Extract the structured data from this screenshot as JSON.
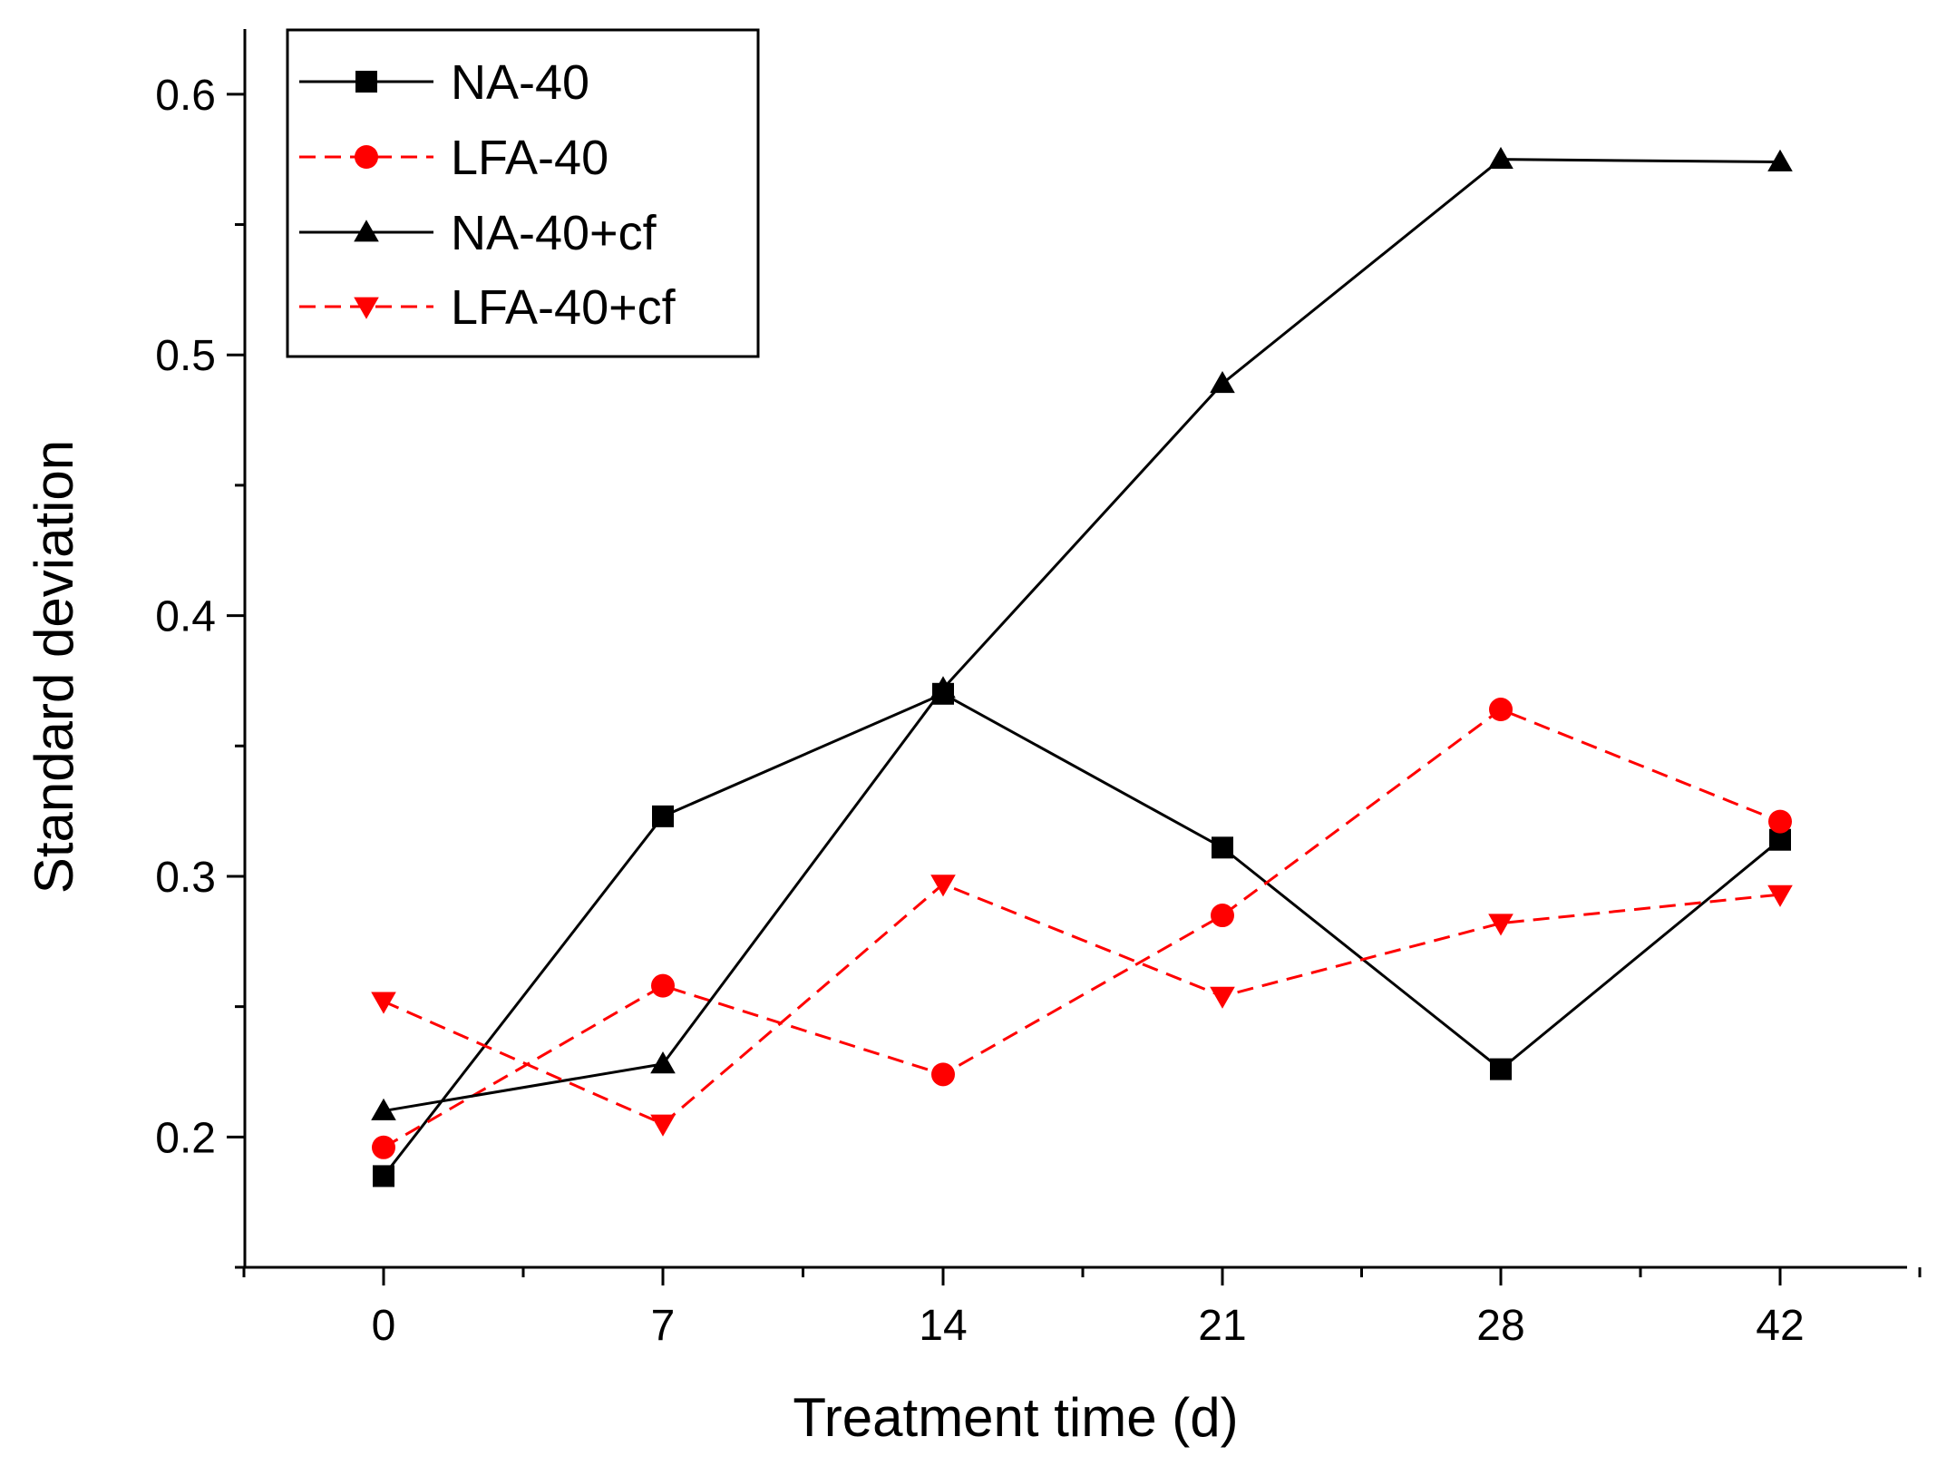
{
  "chart_data": {
    "type": "line",
    "title": "",
    "xlabel": "Treatment time (d)",
    "ylabel": "Standard deviation",
    "categories": [
      "0",
      "7",
      "14",
      "21",
      "28",
      "42"
    ],
    "ylim": [
      0.15,
      0.625
    ],
    "yticks": [
      0.2,
      0.3,
      0.4,
      0.5,
      0.6
    ],
    "ytick_labels": [
      "0.2",
      "0.3",
      "0.4",
      "0.5",
      "0.6"
    ],
    "grid": false,
    "legend_position": "top-left",
    "series": [
      {
        "name": "NA-40",
        "color": "#000000",
        "dash": "solid",
        "marker": "square",
        "values": [
          0.185,
          0.323,
          0.37,
          0.311,
          0.226,
          0.314
        ]
      },
      {
        "name": "LFA-40",
        "color": "#ff0000",
        "dash": "dashed",
        "marker": "circle",
        "values": [
          0.196,
          0.258,
          0.224,
          0.285,
          0.364,
          0.321
        ]
      },
      {
        "name": "NA-40+cf",
        "color": "#000000",
        "dash": "solid",
        "marker": "triangle-up",
        "values": [
          0.21,
          0.228,
          0.372,
          0.489,
          0.575,
          0.574
        ]
      },
      {
        "name": "LFA-40+cf",
        "color": "#ff0000",
        "dash": "dashed",
        "marker": "triangle-down",
        "values": [
          0.252,
          0.205,
          0.297,
          0.254,
          0.282,
          0.293
        ]
      }
    ]
  }
}
